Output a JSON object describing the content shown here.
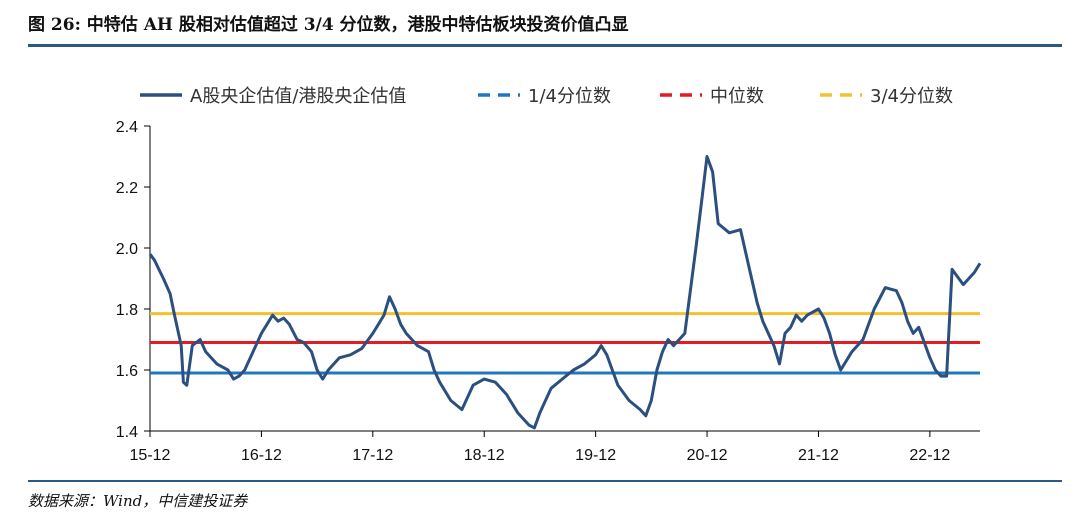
{
  "title": "图 26: 中特估 AH 股相对估值超过 3/4 分位数，港股中特估板块投资价值凸显",
  "source": "数据来源：Wind，中信建投证券",
  "chart_data": {
    "type": "line",
    "title": "",
    "xlabel": "",
    "ylabel": "",
    "ylim": [
      1.4,
      2.4
    ],
    "yticks": [
      "1.4",
      "1.6",
      "1.8",
      "2.0",
      "2.2",
      "2.4"
    ],
    "xticks": [
      "15-12",
      "16-12",
      "17-12",
      "18-12",
      "19-12",
      "20-12",
      "21-12",
      "22-12"
    ],
    "xrange": [
      0,
      7.45
    ],
    "grid": false,
    "legend_position": "top",
    "series": [
      {
        "name": "A股央企估值/港股央企估值",
        "color": "#2b4f7e",
        "x": [
          0.0,
          0.04,
          0.08,
          0.12,
          0.18,
          0.22,
          0.28,
          0.3,
          0.33,
          0.38,
          0.45,
          0.5,
          0.6,
          0.7,
          0.75,
          0.8,
          0.85,
          0.9,
          1.0,
          1.05,
          1.1,
          1.15,
          1.2,
          1.25,
          1.32,
          1.38,
          1.45,
          1.5,
          1.55,
          1.6,
          1.7,
          1.8,
          1.9,
          2.0,
          2.05,
          2.1,
          2.15,
          2.2,
          2.25,
          2.3,
          2.4,
          2.5,
          2.55,
          2.6,
          2.7,
          2.8,
          2.9,
          3.0,
          3.1,
          3.2,
          3.3,
          3.4,
          3.45,
          3.5,
          3.55,
          3.6,
          3.7,
          3.8,
          3.9,
          4.0,
          4.05,
          4.1,
          4.15,
          4.2,
          4.3,
          4.4,
          4.45,
          4.5,
          4.55,
          4.6,
          4.65,
          4.7,
          4.8,
          4.9,
          4.95,
          5.0,
          5.05,
          5.1,
          5.2,
          5.3,
          5.4,
          5.45,
          5.5,
          5.6,
          5.65,
          5.7,
          5.75,
          5.8,
          5.85,
          5.9,
          6.0,
          6.05,
          6.1,
          6.15,
          6.2,
          6.3,
          6.4,
          6.5,
          6.6,
          6.7,
          6.75,
          6.8,
          6.85,
          6.9,
          6.95,
          7.0,
          7.05,
          7.1,
          7.15,
          7.2,
          7.3,
          7.4,
          7.45
        ],
        "y": [
          1.98,
          1.96,
          1.93,
          1.9,
          1.85,
          1.78,
          1.68,
          1.56,
          1.55,
          1.68,
          1.7,
          1.66,
          1.62,
          1.6,
          1.57,
          1.58,
          1.6,
          1.64,
          1.72,
          1.75,
          1.78,
          1.76,
          1.77,
          1.75,
          1.7,
          1.69,
          1.66,
          1.6,
          1.57,
          1.6,
          1.64,
          1.65,
          1.67,
          1.72,
          1.75,
          1.78,
          1.84,
          1.8,
          1.75,
          1.72,
          1.68,
          1.66,
          1.6,
          1.56,
          1.5,
          1.47,
          1.55,
          1.57,
          1.56,
          1.52,
          1.46,
          1.42,
          1.41,
          1.46,
          1.5,
          1.54,
          1.57,
          1.6,
          1.62,
          1.65,
          1.68,
          1.65,
          1.6,
          1.55,
          1.5,
          1.47,
          1.45,
          1.5,
          1.6,
          1.66,
          1.7,
          1.68,
          1.72,
          2.0,
          2.15,
          2.3,
          2.25,
          2.08,
          2.05,
          2.06,
          1.9,
          1.82,
          1.76,
          1.68,
          1.62,
          1.72,
          1.74,
          1.78,
          1.76,
          1.78,
          1.8,
          1.77,
          1.72,
          1.65,
          1.6,
          1.66,
          1.7,
          1.8,
          1.87,
          1.86,
          1.82,
          1.76,
          1.72,
          1.74,
          1.69,
          1.64,
          1.6,
          1.58,
          1.58,
          1.93,
          1.88,
          1.92,
          1.95
        ]
      },
      {
        "name": "1/4分位数",
        "color": "#1f77c0",
        "dashed_in_legend": true,
        "values": [
          1.59,
          1.59
        ]
      },
      {
        "name": "中位数",
        "color": "#e31c23",
        "dashed_in_legend": true,
        "values": [
          1.69,
          1.69
        ]
      },
      {
        "name": "3/4分位数",
        "color": "#f2c12e",
        "dashed_in_legend": true,
        "values": [
          1.785,
          1.785
        ]
      }
    ]
  }
}
